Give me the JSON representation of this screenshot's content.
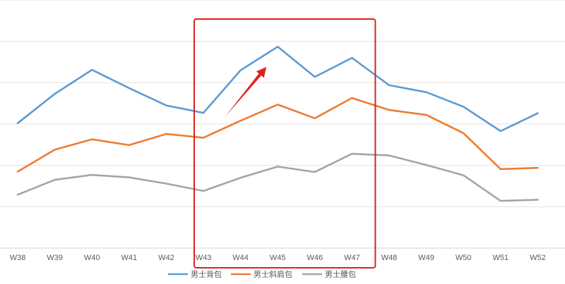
{
  "chart_data": {
    "type": "line",
    "title": "",
    "xlabel": "",
    "ylabel": "",
    "categories": [
      "W38",
      "W39",
      "W40",
      "W41",
      "W42",
      "W43",
      "W44",
      "W45",
      "W46",
      "W47",
      "W48",
      "W49",
      "W50",
      "W51",
      "W52"
    ],
    "ylim": [
      0,
      6
    ],
    "y_tick_labels_shown": false,
    "grid": "horizontal",
    "legend_position": "bottom",
    "series": [
      {
        "name": "男士背包",
        "color": "#5B9BD5",
        "values": [
          3.02,
          3.73,
          4.31,
          3.87,
          3.45,
          3.27,
          4.3,
          4.87,
          4.14,
          4.6,
          3.94,
          3.77,
          3.42,
          2.83,
          3.26
        ]
      },
      {
        "name": "男士斜肩包",
        "color": "#ED7D31",
        "values": [
          1.85,
          2.38,
          2.63,
          2.49,
          2.76,
          2.67,
          3.08,
          3.47,
          3.14,
          3.63,
          3.34,
          3.22,
          2.78,
          1.91,
          1.94
        ]
      },
      {
        "name": "男士腰包",
        "color": "#A5A5A5",
        "values": [
          1.29,
          1.65,
          1.77,
          1.71,
          1.56,
          1.38,
          1.7,
          1.97,
          1.84,
          2.28,
          2.24,
          2.01,
          1.76,
          1.14,
          1.17
        ]
      }
    ],
    "annotations": [
      {
        "type": "highlight-box",
        "color": "#E0201C",
        "from_category": "W43",
        "to_category": "W47"
      },
      {
        "type": "arrow",
        "color": "#E0201C",
        "direction": "up-right",
        "near_category": "W45"
      }
    ]
  }
}
